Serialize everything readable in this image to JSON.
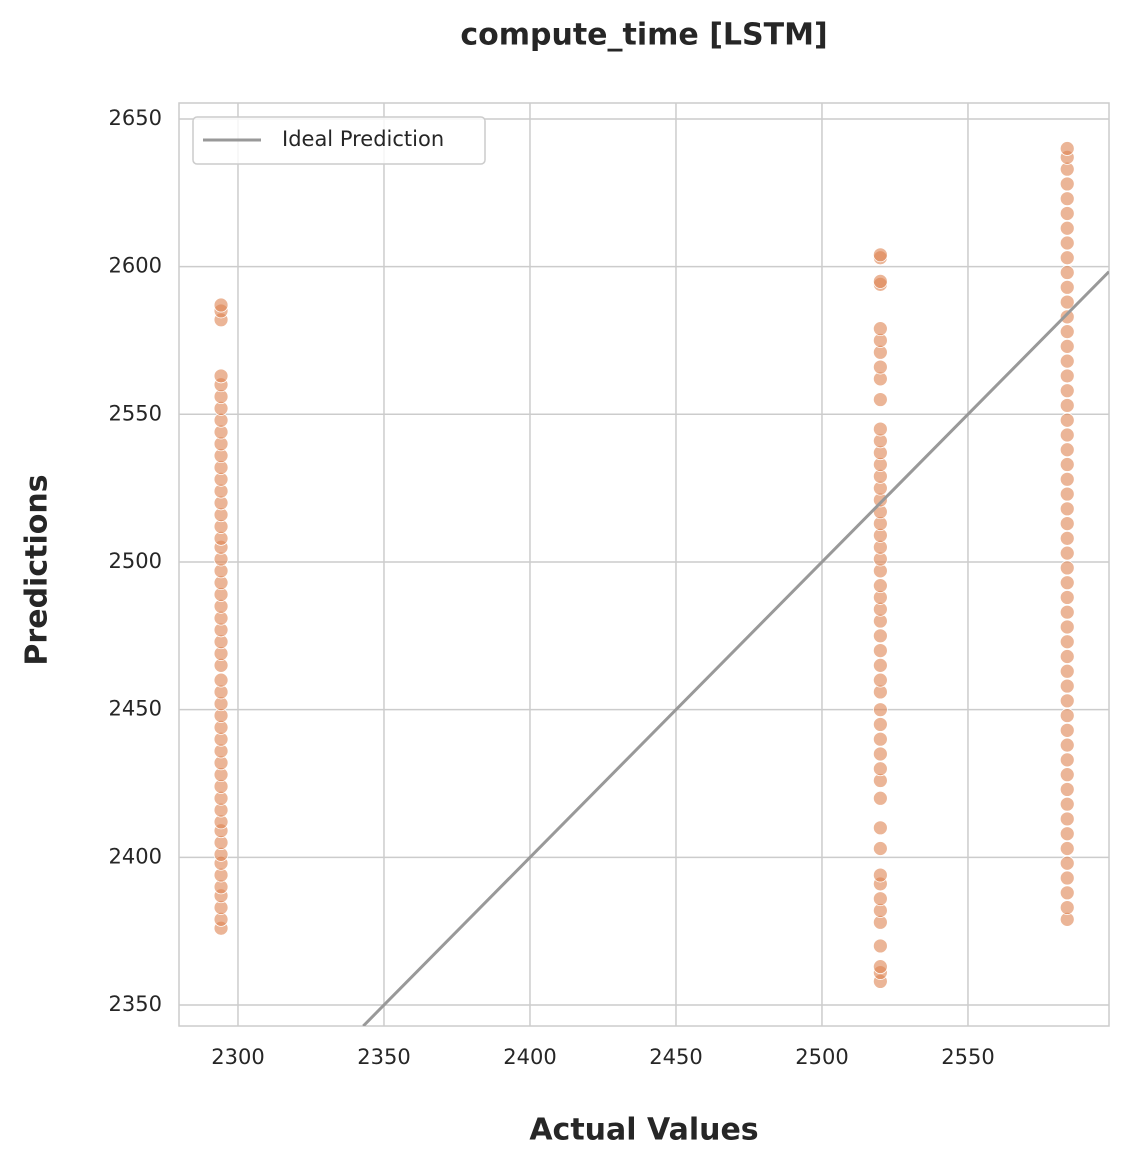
{
  "chart_data": {
    "type": "scatter",
    "title": "compute_time [LSTM]",
    "x_label": "Actual Values",
    "y_label": "Predictions",
    "xlim": [
      2279.8,
      2598.3
    ],
    "ylim": [
      2342.9,
      2655.4
    ],
    "xticks": [
      2300,
      2350,
      2400,
      2450,
      2500,
      2550
    ],
    "yticks": [
      2350,
      2400,
      2450,
      2500,
      2550,
      2600,
      2650
    ],
    "grid": true,
    "legend": "upper left",
    "point_color": "#dd8452",
    "groups": [
      {
        "x": 2294.2,
        "values": [
          2376,
          2379,
          2383,
          2387,
          2390,
          2394,
          2398,
          2401,
          2405,
          2409,
          2412,
          2416,
          2420,
          2424,
          2428,
          2432,
          2436,
          2440,
          2444,
          2448,
          2452,
          2456,
          2460,
          2465,
          2469,
          2473,
          2477,
          2481,
          2485,
          2489,
          2493,
          2497,
          2501,
          2505,
          2508,
          2512,
          2516,
          2520,
          2524,
          2528,
          2532,
          2536,
          2540,
          2544,
          2548,
          2552,
          2556,
          2560,
          2563,
          2582,
          2585,
          2587
        ]
      },
      {
        "x": 2520,
        "values": [
          2358,
          2361,
          2363,
          2370,
          2378,
          2382,
          2386,
          2391,
          2394,
          2403,
          2410,
          2420,
          2426,
          2430,
          2435,
          2440,
          2445,
          2450,
          2456,
          2460,
          2465,
          2470,
          2475,
          2480,
          2484,
          2488,
          2492,
          2497,
          2501,
          2505,
          2509,
          2513,
          2517,
          2521,
          2525,
          2529,
          2533,
          2537,
          2541,
          2545,
          2555,
          2562,
          2566,
          2571,
          2575,
          2579,
          2594,
          2595,
          2603,
          2604
        ]
      },
      {
        "x": 2584,
        "values": [
          2379,
          2383,
          2388,
          2393,
          2398,
          2403,
          2408,
          2413,
          2418,
          2423,
          2428,
          2433,
          2438,
          2443,
          2448,
          2453,
          2458,
          2463,
          2468,
          2473,
          2478,
          2483,
          2488,
          2493,
          2498,
          2503,
          2508,
          2513,
          2518,
          2523,
          2528,
          2533,
          2538,
          2543,
          2548,
          2553,
          2558,
          2563,
          2568,
          2573,
          2578,
          2583,
          2588,
          2593,
          2598,
          2603,
          2608,
          2613,
          2618,
          2623,
          2628,
          2633,
          2637,
          2640
        ]
      }
    ],
    "ideal_line": {
      "name": "Ideal Prediction",
      "color": "#999999",
      "x": [
        2342.9,
        2598.3
      ],
      "values": [
        2342.9,
        2598.3
      ]
    }
  }
}
